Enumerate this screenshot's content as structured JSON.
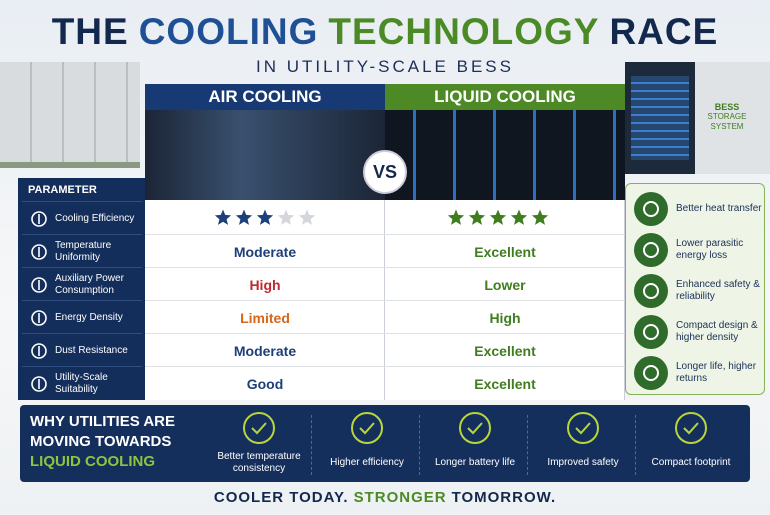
{
  "header": {
    "title": [
      "THE",
      "COOLING",
      "TECHNOLOGY",
      "RACE"
    ],
    "subtitle": "IN UTILITY-SCALE BESS"
  },
  "image_label": [
    "BESS",
    "STORAGE",
    "SYSTEM"
  ],
  "columns": {
    "parameter": "PARAMETER",
    "air": "AIR COOLING",
    "vs": "VS",
    "liquid": "LIQUID COOLING"
  },
  "rating_scale": 5,
  "rows": [
    {
      "parameter": "Cooling Efficiency",
      "air_rating": 3,
      "liquid_rating": 5
    },
    {
      "parameter": "Temperature Uniformity",
      "air": "Moderate",
      "air_color": "#1d3f7a",
      "liquid": "Excellent"
    },
    {
      "parameter": "Auxiliary Power Consumption",
      "air": "High",
      "air_color": "#c0282d",
      "liquid": "Lower"
    },
    {
      "parameter": "Energy Density",
      "air": "Limited",
      "air_color": "#d8661a",
      "liquid": "High"
    },
    {
      "parameter": "Dust Resistance",
      "air": "Moderate",
      "air_color": "#1d3f7a",
      "liquid": "Excellent"
    },
    {
      "parameter": "Utility-Scale Suitability",
      "air": "Good",
      "air_color": "#1d3f7a",
      "liquid": "Excellent"
    }
  ],
  "benefits": [
    "Better heat transfer",
    "Lower parasitic energy loss",
    "Enhanced safety & reliability",
    "Compact design & higher density",
    "Longer life, higher returns"
  ],
  "banner": {
    "heading": [
      "WHY UTILITIES ARE",
      "MOVING TOWARDS",
      "LIQUID COOLING"
    ],
    "reasons": [
      "Better temperature consistency",
      "Higher efficiency",
      "Longer battery life",
      "Improved safety",
      "Compact footprint"
    ]
  },
  "footer": [
    "COOLER TODAY.",
    "STRONGER",
    "TOMORROW."
  ]
}
